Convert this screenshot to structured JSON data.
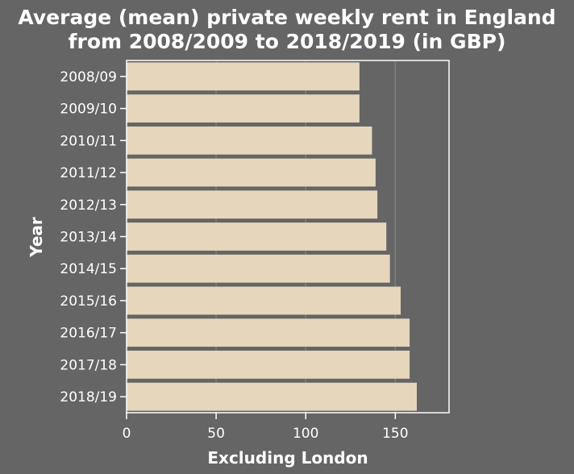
{
  "chart_data": {
    "type": "bar",
    "orientation": "horizontal",
    "title": "Average (mean) private weekly rent in England from 2008/2009 to 2018/2019 (in GBP)",
    "title_lines": [
      "Average (mean) private weekly rent in England",
      "from 2008/2009 to 2018/2019 (in GBP)"
    ],
    "xlabel": "Excluding London",
    "ylabel": "Year",
    "categories": [
      "2008/09",
      "2009/10",
      "2010/11",
      "2011/12",
      "2012/13",
      "2013/14",
      "2014/15",
      "2015/16",
      "2016/17",
      "2017/18",
      "2018/19"
    ],
    "values": [
      130,
      130,
      137,
      139,
      140,
      145,
      147,
      153,
      158,
      158,
      162
    ],
    "xlim": [
      0,
      180
    ],
    "xticks": [
      0,
      50,
      100,
      150
    ],
    "grid": true,
    "colors": {
      "background": "#656565",
      "plot_background": "#656565",
      "bar": "#e6d6bc",
      "grid": "#7e7e7e",
      "axis": "#ffffff",
      "text": "#ffffff"
    }
  }
}
